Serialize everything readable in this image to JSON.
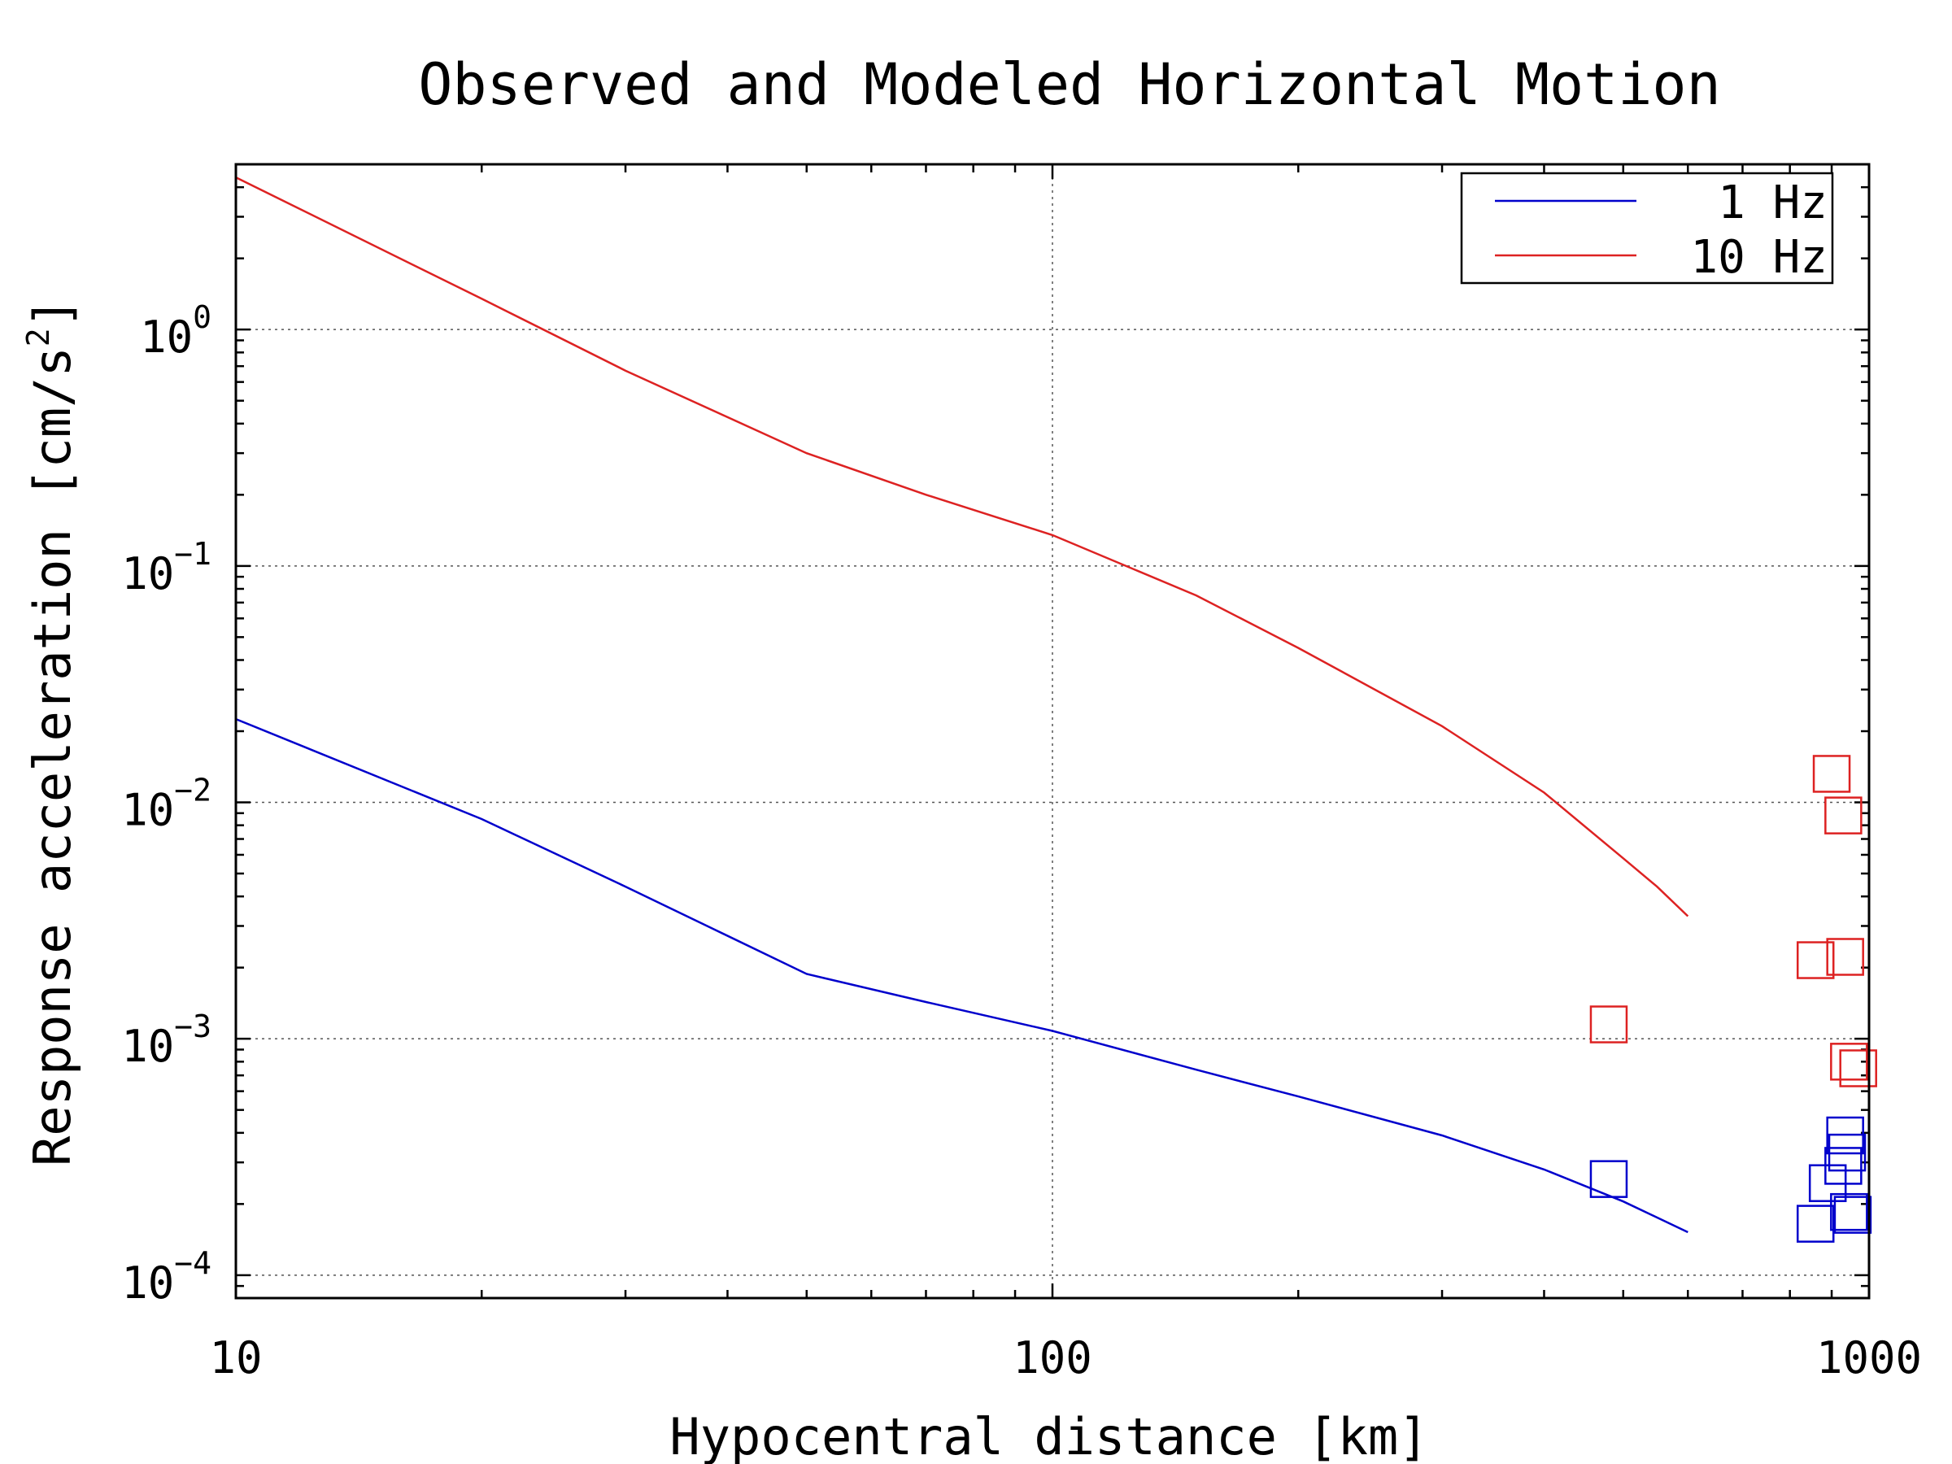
{
  "chart_data": {
    "type": "line",
    "title": "Observed and Modeled Horizontal Motion",
    "xlabel": "Hypocentral distance [km]",
    "ylabel": "Response acceleration [cm/s",
    "ylabel_exp": "2",
    "ylabel_close": "]",
    "x_scale": "log",
    "y_scale": "log",
    "xlim": [
      10,
      1000
    ],
    "ylim": [
      8e-05,
      5
    ],
    "x_ticks": [
      {
        "value": 10,
        "label": "10"
      },
      {
        "value": 100,
        "label": "100"
      },
      {
        "value": 1000,
        "label": "1000"
      }
    ],
    "y_ticks": [
      {
        "value": 1,
        "base": "10",
        "exp": "0"
      },
      {
        "value": 0.1,
        "base": "10",
        "exp": "−1"
      },
      {
        "value": 0.01,
        "base": "10",
        "exp": "−2"
      },
      {
        "value": 0.001,
        "base": "10",
        "exp": "−3"
      },
      {
        "value": 0.0001,
        "base": "10",
        "exp": "−4"
      }
    ],
    "grid": true,
    "legend_position": "top-right",
    "series": [
      {
        "name": "1 Hz",
        "color": "#0000cc",
        "line": {
          "x": [
            10,
            20,
            30,
            50,
            70,
            100,
            150,
            200,
            300,
            400,
            500,
            600
          ],
          "y": [
            0.0225,
            0.0085,
            0.0044,
            0.00188,
            0.00143,
            0.00108,
            0.00074,
            0.00057,
            0.00039,
            0.00028,
            0.000205,
            0.000152
          ]
        },
        "observed": {
          "x": [
            480,
            860,
            890,
            930,
            935,
            940,
            945,
            955
          ],
          "y": [
            0.000255,
            0.000165,
            0.000245,
            0.00029,
            0.00039,
            0.00033,
            0.000185,
            0.00018
          ]
        }
      },
      {
        "name": "10 Hz",
        "color": "#dd2222",
        "line": {
          "x": [
            10,
            20,
            30,
            50,
            70,
            100,
            150,
            200,
            300,
            400,
            500,
            550,
            600
          ],
          "y": [
            4.4,
            1.35,
            0.67,
            0.3,
            0.2,
            0.135,
            0.075,
            0.045,
            0.021,
            0.011,
            0.0058,
            0.0044,
            0.0033
          ]
        },
        "observed": {
          "x": [
            480,
            860,
            900,
            930,
            935,
            945,
            970
          ],
          "y": [
            0.00115,
            0.00215,
            0.0132,
            0.0088,
            0.00222,
            0.0008,
            0.00075
          ]
        }
      }
    ]
  }
}
